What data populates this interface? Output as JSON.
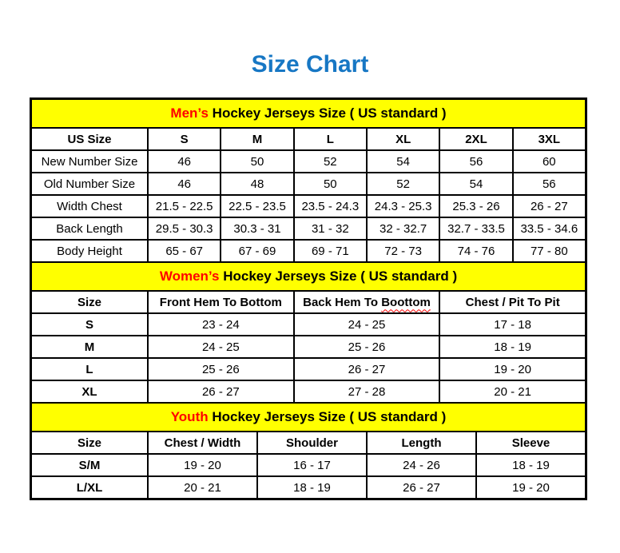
{
  "page_title": "Size Chart",
  "colors": {
    "title_blue": "#1777C4",
    "banner_yellow": "#FFFF00",
    "accent_red": "#FF0000",
    "border_black": "#000000"
  },
  "tables": [
    {
      "id": "mens",
      "banner": {
        "highlight": "Men’s",
        "rest": " Hockey Jerseys Size ( US standard )"
      },
      "columns": [
        "US Size",
        "S",
        "M",
        "L",
        "XL",
        "2XL",
        "3XL"
      ],
      "rows": [
        [
          "New Number Size",
          "46",
          "50",
          "52",
          "54",
          "56",
          "60"
        ],
        [
          "Old Number Size",
          "46",
          "48",
          "50",
          "52",
          "54",
          "56"
        ],
        [
          "Width Chest",
          "21.5 - 22.5",
          "22.5 - 23.5",
          "23.5 - 24.3",
          "24.3 - 25.3",
          "25.3 - 26",
          "26 - 27"
        ],
        [
          "Back Length",
          "29.5 - 30.3",
          "30.3 - 31",
          "31 - 32",
          "32 - 32.7",
          "32.7 - 33.5",
          "33.5 - 34.6"
        ],
        [
          "Body Height",
          "65 - 67",
          "67 - 69",
          "69 - 71",
          "72 - 73",
          "74 - 76",
          "77 - 80"
        ]
      ]
    },
    {
      "id": "womens",
      "banner": {
        "highlight": "Women’s",
        "rest": " Hockey Jerseys Size ( US standard )"
      },
      "columns": [
        "Size",
        "Front Hem To Bottom",
        "Back Hem To Boottom",
        "Chest / Pit To Pit"
      ],
      "squiggle": {
        "column_index": 2,
        "word": "Boottom"
      },
      "rows": [
        [
          "S",
          "23 - 24",
          "24 - 25",
          "17 - 18"
        ],
        [
          "M",
          "24 - 25",
          "25 - 26",
          "18 - 19"
        ],
        [
          "L",
          "25 - 26",
          "26 - 27",
          "19 - 20"
        ],
        [
          "XL",
          "26 - 27",
          "27 - 28",
          "20 - 21"
        ]
      ]
    },
    {
      "id": "youth",
      "banner": {
        "highlight": "Youth",
        "rest": " Hockey Jerseys Size ( US standard )"
      },
      "columns": [
        "Size",
        "Chest / Width",
        "Shoulder",
        "Length",
        "Sleeve"
      ],
      "rows": [
        [
          "S/M",
          "19 - 20",
          "16 - 17",
          "24 - 26",
          "18 - 19"
        ],
        [
          "L/XL",
          "20 - 21",
          "18 - 19",
          "26 - 27",
          "19 - 20"
        ]
      ]
    }
  ]
}
